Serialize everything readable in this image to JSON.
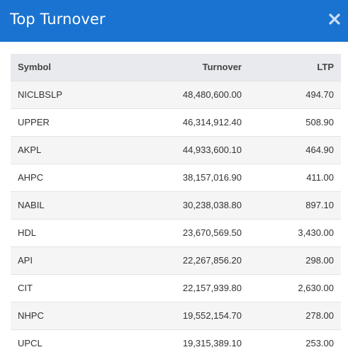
{
  "modal": {
    "title": "Top Turnover",
    "close_icon": "close-icon",
    "accent_color": "#1a73d0"
  },
  "table": {
    "headers": {
      "symbol": "Symbol",
      "turnover": "Turnover",
      "ltp": "LTP"
    },
    "rows": [
      {
        "symbol": "NICLBSLP",
        "turnover": "48,480,600.00",
        "ltp": "494.70"
      },
      {
        "symbol": "UPPER",
        "turnover": "46,314,912.40",
        "ltp": "508.90"
      },
      {
        "symbol": "AKPL",
        "turnover": "44,933,600.10",
        "ltp": "464.90"
      },
      {
        "symbol": "AHPC",
        "turnover": "38,157,016.90",
        "ltp": "411.00"
      },
      {
        "symbol": "NABIL",
        "turnover": "30,238,038.80",
        "ltp": "897.10"
      },
      {
        "symbol": "HDL",
        "turnover": "23,670,569.50",
        "ltp": "3,430.00"
      },
      {
        "symbol": "API",
        "turnover": "22,267,856.20",
        "ltp": "298.00"
      },
      {
        "symbol": "CIT",
        "turnover": "22,157,939.80",
        "ltp": "2,630.00"
      },
      {
        "symbol": "NHPC",
        "turnover": "19,552,154.70",
        "ltp": "278.00"
      },
      {
        "symbol": "UPCL",
        "turnover": "19,315,389.10",
        "ltp": "253.00"
      }
    ]
  }
}
